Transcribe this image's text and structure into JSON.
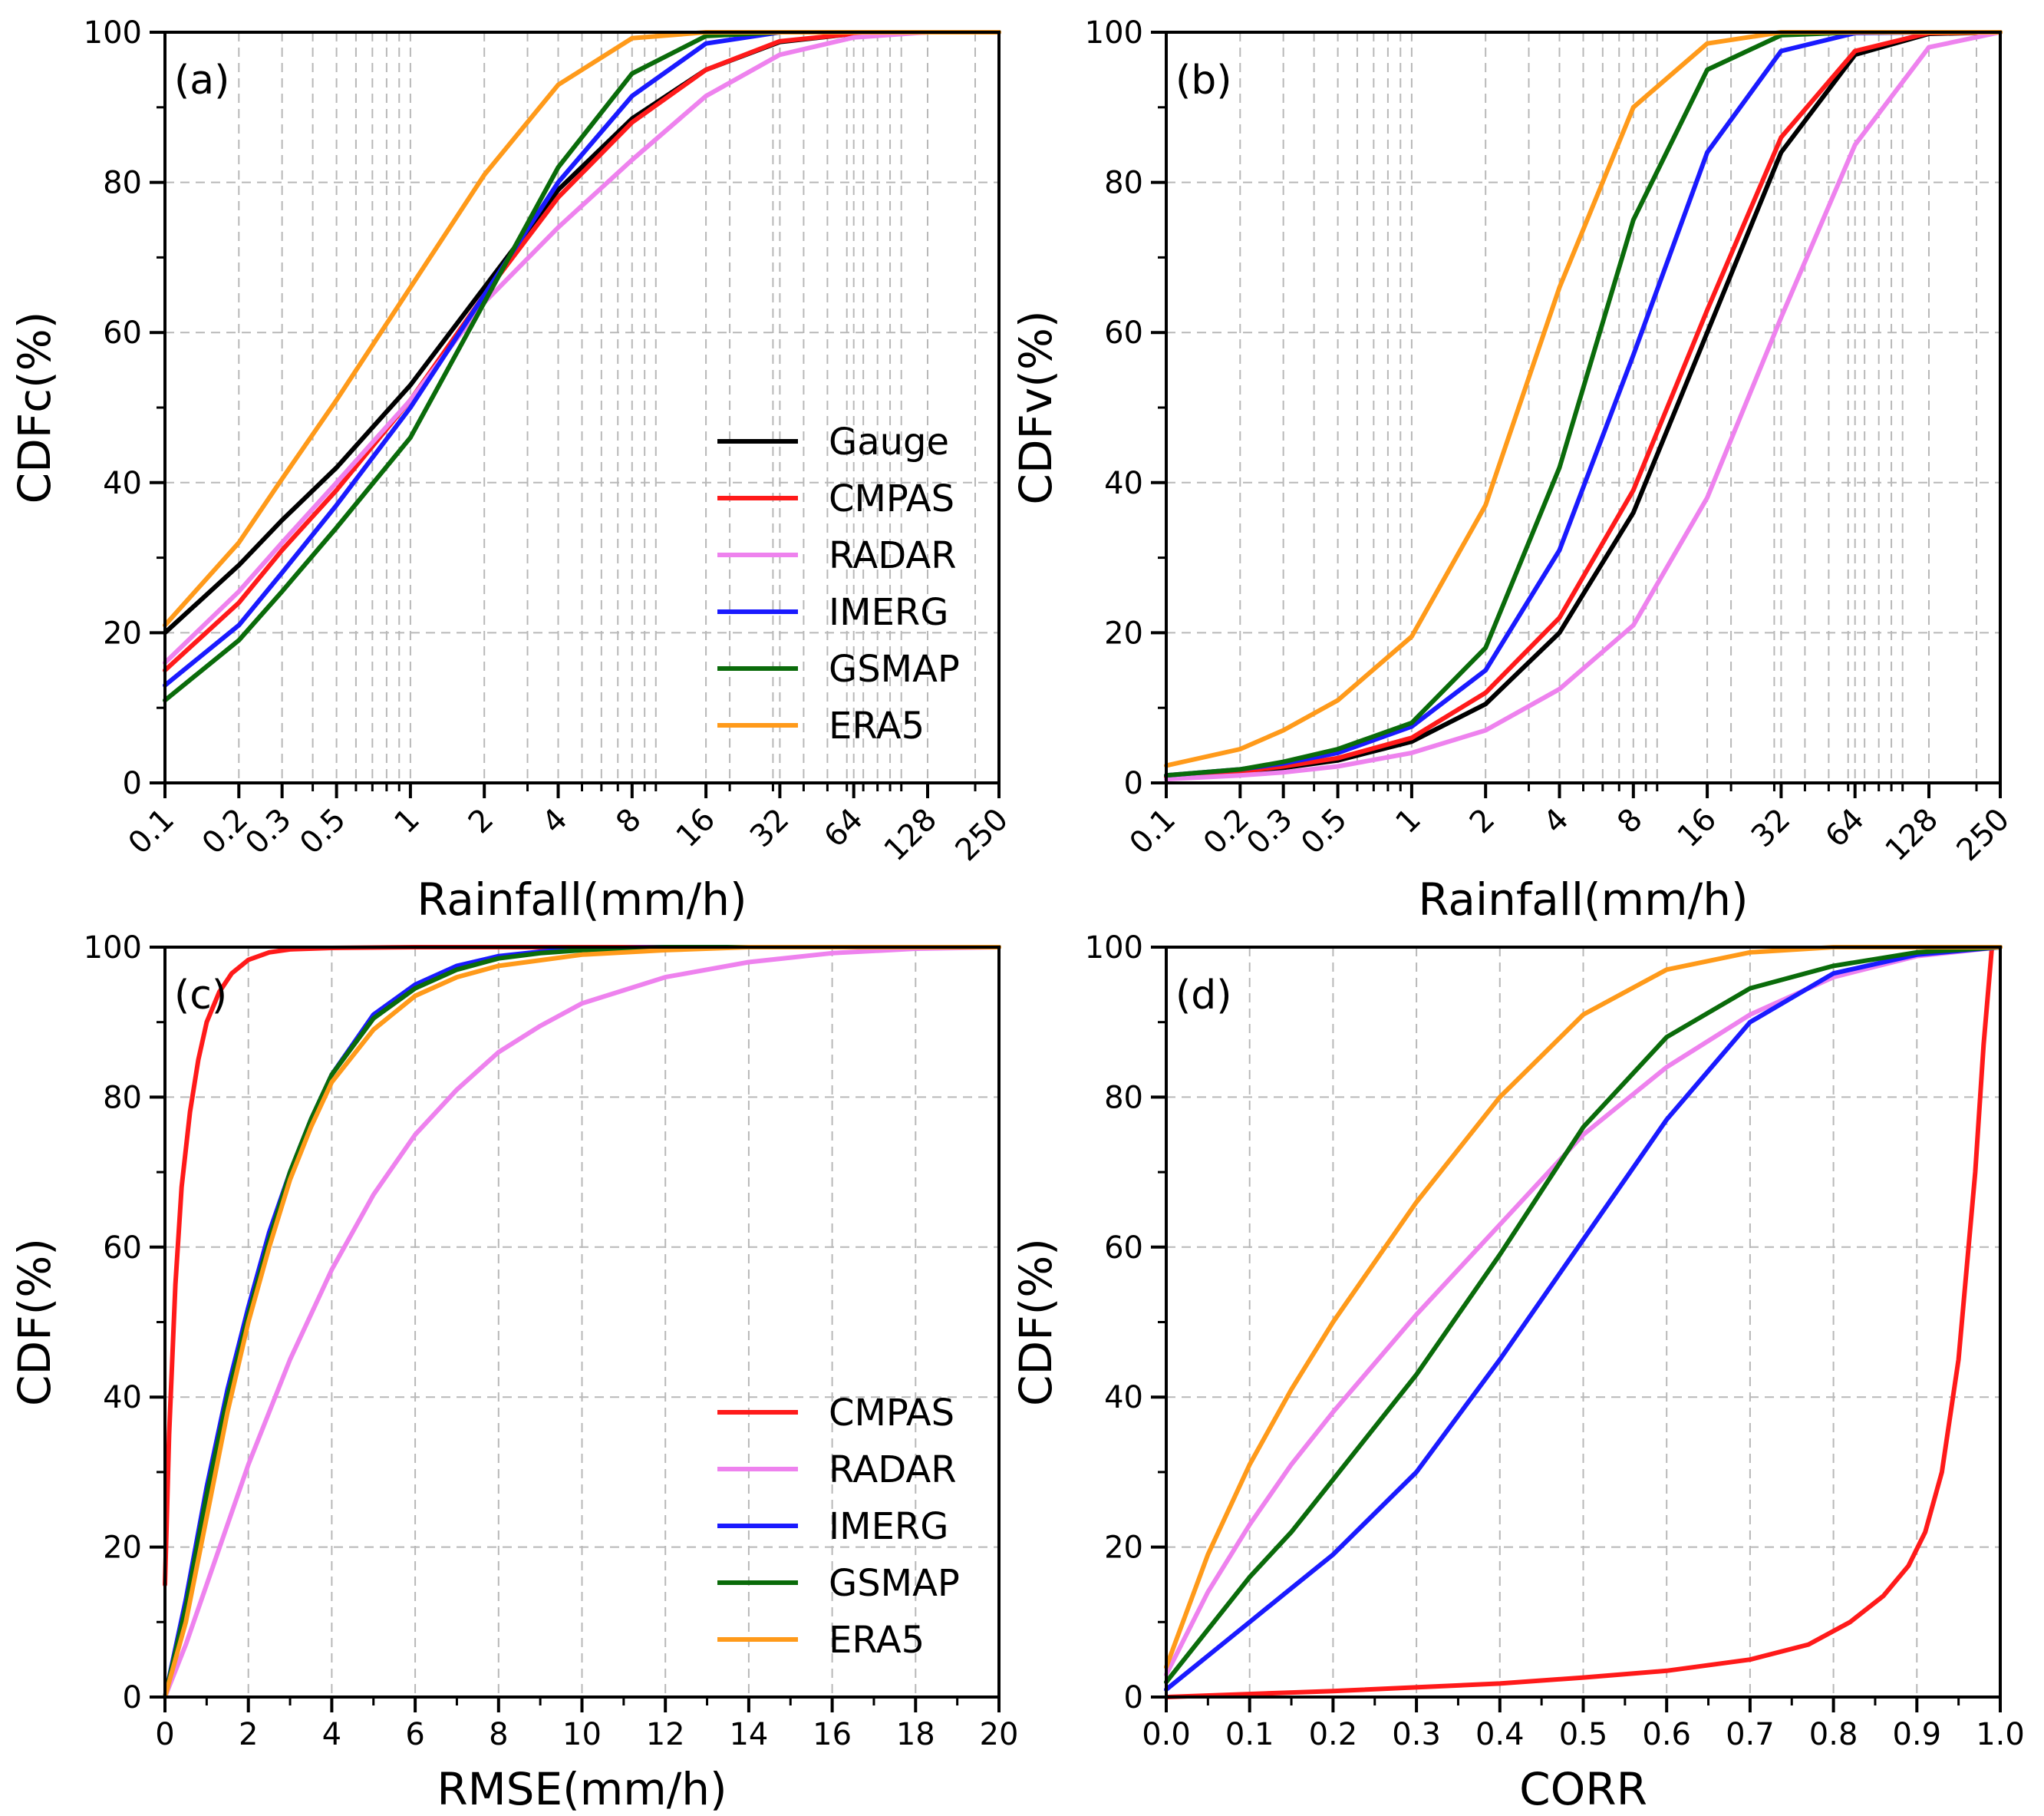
{
  "colors": {
    "Gauge": "#000000",
    "CMPAS": "#ff1a1a",
    "RADAR": "#ee82ee",
    "IMERG": "#1a1aff",
    "GSMAP": "#0a6b0a",
    "ERA5": "#ff9a1a"
  },
  "chart_data": [
    {
      "id": "a",
      "type": "line",
      "panel_label": "(a)",
      "xscale": "log",
      "xlabel": "Rainfall(mm/h)",
      "ylabel": "CDFc(%)",
      "xlim": [
        0.1,
        250
      ],
      "ylim": [
        0,
        100
      ],
      "x_ticks": [
        0.1,
        0.2,
        0.3,
        0.5,
        1,
        2,
        4,
        8,
        16,
        32,
        64,
        128,
        250
      ],
      "x_tick_labels": [
        "0.1",
        "0.2",
        "0.3",
        "0.5",
        "1",
        "2",
        "4",
        "8",
        "16",
        "32",
        "64",
        "128",
        "250"
      ],
      "y_ticks": [
        0,
        20,
        40,
        60,
        80,
        100
      ],
      "y_tick_labels": [
        "0",
        "20",
        "40",
        "60",
        "80",
        "100"
      ],
      "grid": true,
      "legend": "center-right",
      "series": [
        {
          "name": "Gauge",
          "x": [
            0.1,
            0.2,
            0.3,
            0.5,
            1,
            2,
            4,
            8,
            16,
            32,
            64,
            128,
            250
          ],
          "y": [
            20,
            29,
            35,
            42,
            53,
            66,
            79,
            88.5,
            95,
            98.7,
            99.8,
            100,
            100
          ]
        },
        {
          "name": "CMPAS",
          "x": [
            0.1,
            0.2,
            0.3,
            0.5,
            1,
            2,
            4,
            8,
            16,
            32,
            64,
            128,
            250
          ],
          "y": [
            15,
            24,
            31,
            39,
            51,
            65,
            78,
            88,
            95,
            98.8,
            99.8,
            100,
            100
          ]
        },
        {
          "name": "RADAR",
          "x": [
            0.1,
            0.2,
            0.3,
            0.5,
            1,
            2,
            4,
            8,
            16,
            32,
            64,
            128,
            250
          ],
          "y": [
            16,
            25.5,
            32,
            40,
            51,
            64,
            74,
            83,
            91.5,
            97,
            99.3,
            100,
            100
          ]
        },
        {
          "name": "IMERG",
          "x": [
            0.1,
            0.2,
            0.3,
            0.5,
            1,
            2,
            4,
            8,
            16,
            32,
            64,
            128,
            250
          ],
          "y": [
            13,
            21,
            28,
            37,
            50,
            65,
            80,
            91.5,
            98.5,
            100,
            100,
            100,
            100
          ]
        },
        {
          "name": "GSMAP",
          "x": [
            0.1,
            0.2,
            0.3,
            0.5,
            1,
            2,
            4,
            8,
            16,
            32,
            64,
            128,
            250
          ],
          "y": [
            11,
            19,
            25.5,
            34,
            46,
            64,
            82,
            94.5,
            99.5,
            100,
            100,
            100,
            100
          ]
        },
        {
          "name": "ERA5",
          "x": [
            0.1,
            0.2,
            0.3,
            0.5,
            1,
            2,
            4,
            8,
            16,
            32,
            64,
            128,
            250
          ],
          "y": [
            21,
            32,
            40.5,
            51,
            66,
            81,
            93,
            99.2,
            100,
            100,
            100,
            100,
            100
          ]
        }
      ]
    },
    {
      "id": "b",
      "type": "line",
      "panel_label": "(b)",
      "xscale": "log",
      "xlabel": "Rainfall(mm/h)",
      "ylabel": "CDFv(%)",
      "xlim": [
        0.1,
        250
      ],
      "ylim": [
        0,
        100
      ],
      "x_ticks": [
        0.1,
        0.2,
        0.3,
        0.5,
        1,
        2,
        4,
        8,
        16,
        32,
        64,
        128,
        250
      ],
      "x_tick_labels": [
        "0.1",
        "0.2",
        "0.3",
        "0.5",
        "1",
        "2",
        "4",
        "8",
        "16",
        "32",
        "64",
        "128",
        "250"
      ],
      "y_ticks": [
        0,
        20,
        40,
        60,
        80,
        100
      ],
      "y_tick_labels": [
        "0",
        "20",
        "40",
        "60",
        "80",
        "100"
      ],
      "grid": true,
      "legend": "none",
      "series": [
        {
          "name": "Gauge",
          "x": [
            0.1,
            0.2,
            0.3,
            0.5,
            1,
            2,
            4,
            8,
            16,
            32,
            64,
            128,
            250
          ],
          "y": [
            0.8,
            1.4,
            2,
            3,
            5.5,
            10.5,
            20,
            36,
            60,
            84,
            97,
            99.8,
            100
          ]
        },
        {
          "name": "CMPAS",
          "x": [
            0.1,
            0.2,
            0.3,
            0.5,
            1,
            2,
            4,
            8,
            16,
            32,
            64,
            128,
            250
          ],
          "y": [
            0.8,
            1.5,
            2.2,
            3.3,
            6,
            12,
            22,
            39,
            63,
            86,
            97.5,
            99.9,
            100
          ]
        },
        {
          "name": "RADAR",
          "x": [
            0.1,
            0.2,
            0.3,
            0.5,
            1,
            2,
            4,
            8,
            16,
            32,
            64,
            128,
            250
          ],
          "y": [
            0.5,
            1,
            1.4,
            2.2,
            4,
            7,
            12.5,
            21,
            38,
            62,
            85,
            98,
            100
          ]
        },
        {
          "name": "IMERG",
          "x": [
            0.1,
            0.2,
            0.3,
            0.5,
            1,
            2,
            4,
            8,
            16,
            32,
            64,
            128,
            250
          ],
          "y": [
            1,
            1.8,
            2.6,
            4,
            7.5,
            15,
            31,
            57,
            84,
            97.5,
            99.9,
            100,
            100
          ]
        },
        {
          "name": "GSMAP",
          "x": [
            0.1,
            0.2,
            0.3,
            0.5,
            1,
            2,
            4,
            8,
            16,
            32,
            64,
            128,
            250
          ],
          "y": [
            1,
            1.8,
            2.8,
            4.5,
            8,
            18,
            42,
            75,
            95,
            99.6,
            100,
            100,
            100
          ]
        },
        {
          "name": "ERA5",
          "x": [
            0.1,
            0.2,
            0.3,
            0.5,
            1,
            2,
            4,
            8,
            16,
            32,
            64,
            128,
            250
          ],
          "y": [
            2.3,
            4.5,
            7,
            11,
            19.5,
            37,
            66,
            90,
            98.5,
            100,
            100,
            100,
            100
          ]
        }
      ]
    },
    {
      "id": "c",
      "type": "line",
      "panel_label": "(c)",
      "xscale": "linear",
      "xlabel": "RMSE(mm/h)",
      "ylabel": "CDF(%)",
      "xlim": [
        0,
        20
      ],
      "ylim": [
        0,
        100
      ],
      "x_ticks": [
        0,
        2,
        4,
        6,
        8,
        10,
        12,
        14,
        16,
        18,
        20
      ],
      "x_tick_labels": [
        "0",
        "2",
        "4",
        "6",
        "8",
        "10",
        "12",
        "14",
        "16",
        "18",
        "20"
      ],
      "y_ticks": [
        0,
        20,
        40,
        60,
        80,
        100
      ],
      "y_tick_labels": [
        "0",
        "20",
        "40",
        "60",
        "80",
        "100"
      ],
      "grid": true,
      "legend": "bottom-right",
      "series": [
        {
          "name": "CMPAS",
          "x": [
            0,
            0.1,
            0.25,
            0.4,
            0.6,
            0.8,
            1.0,
            1.3,
            1.6,
            2.0,
            2.5,
            3.0,
            4.0,
            6.0,
            20.0
          ],
          "y": [
            15,
            35,
            55,
            68,
            78,
            85,
            90,
            94,
            96.5,
            98.3,
            99.3,
            99.7,
            99.9,
            100,
            100
          ]
        },
        {
          "name": "RADAR",
          "x": [
            0,
            0.5,
            1,
            1.5,
            2,
            3,
            4,
            5,
            6,
            7,
            8,
            9,
            10,
            12,
            14,
            16,
            18,
            20
          ],
          "y": [
            0,
            7,
            15,
            23,
            31,
            45,
            57,
            67,
            75,
            81,
            86,
            89.5,
            92.5,
            96,
            98,
            99.2,
            99.8,
            100
          ]
        },
        {
          "name": "IMERG",
          "x": [
            0,
            0.5,
            1,
            1.5,
            2,
            2.5,
            3,
            3.5,
            4,
            5,
            6,
            7,
            8,
            9,
            10,
            12,
            20
          ],
          "y": [
            0,
            13,
            28,
            41,
            52,
            62,
            70,
            77,
            83,
            91,
            95,
            97.5,
            98.8,
            99.4,
            99.8,
            100,
            100
          ]
        },
        {
          "name": "GSMAP",
          "x": [
            0,
            0.5,
            1,
            1.5,
            2,
            2.5,
            3,
            3.5,
            4,
            5,
            6,
            7,
            8,
            9,
            10,
            12,
            20
          ],
          "y": [
            0,
            12,
            27,
            40,
            51,
            61,
            70,
            77,
            83,
            90.5,
            94.5,
            97,
            98.5,
            99.2,
            99.6,
            100,
            100
          ]
        },
        {
          "name": "ERA5",
          "x": [
            0,
            0.5,
            1,
            1.5,
            2,
            2.5,
            3,
            3.5,
            4,
            5,
            6,
            7,
            8,
            10,
            12,
            14,
            20
          ],
          "y": [
            0,
            10,
            24,
            38,
            50,
            60,
            69,
            76,
            82,
            89,
            93.5,
            96,
            97.5,
            99,
            99.6,
            100,
            100
          ]
        }
      ]
    },
    {
      "id": "d",
      "type": "line",
      "panel_label": "(d)",
      "xscale": "linear",
      "xlabel": "CORR",
      "ylabel": "CDF(%)",
      "xlim": [
        0,
        1
      ],
      "ylim": [
        0,
        100
      ],
      "x_ticks": [
        0,
        0.1,
        0.2,
        0.3,
        0.4,
        0.5,
        0.6,
        0.7,
        0.8,
        0.9,
        1.0
      ],
      "x_tick_labels": [
        "0.0",
        "0.1",
        "0.2",
        "0.3",
        "0.4",
        "0.5",
        "0.6",
        "0.7",
        "0.8",
        "0.9",
        "1.0"
      ],
      "y_ticks": [
        0,
        20,
        40,
        60,
        80,
        100
      ],
      "y_tick_labels": [
        "0",
        "20",
        "40",
        "60",
        "80",
        "100"
      ],
      "grid": true,
      "legend": "none",
      "series": [
        {
          "name": "CMPAS",
          "x": [
            0,
            0.2,
            0.4,
            0.5,
            0.6,
            0.7,
            0.77,
            0.82,
            0.86,
            0.89,
            0.91,
            0.93,
            0.95,
            0.97,
            0.98,
            0.99
          ],
          "y": [
            0,
            0.8,
            1.8,
            2.6,
            3.5,
            5,
            7,
            10,
            13.5,
            17.5,
            22,
            30,
            45,
            70,
            87,
            100
          ]
        },
        {
          "name": "RADAR",
          "x": [
            0,
            0.05,
            0.1,
            0.15,
            0.2,
            0.3,
            0.4,
            0.5,
            0.6,
            0.7,
            0.8,
            0.9,
            1.0
          ],
          "y": [
            3,
            14,
            23,
            31,
            38,
            51,
            63,
            75,
            84,
            91,
            96,
            98.8,
            100
          ]
        },
        {
          "name": "IMERG",
          "x": [
            0,
            0.05,
            0.1,
            0.15,
            0.2,
            0.3,
            0.4,
            0.5,
            0.6,
            0.7,
            0.8,
            0.9,
            1.0
          ],
          "y": [
            1,
            5.5,
            10,
            14.5,
            19,
            30,
            45,
            61,
            77,
            90,
            96.5,
            99,
            100
          ]
        },
        {
          "name": "GSMAP",
          "x": [
            0,
            0.05,
            0.1,
            0.15,
            0.2,
            0.3,
            0.4,
            0.5,
            0.6,
            0.7,
            0.8,
            0.9,
            1.0
          ],
          "y": [
            2,
            9,
            16,
            22,
            29,
            43,
            59,
            76,
            88,
            94.5,
            97.5,
            99.3,
            100
          ]
        },
        {
          "name": "ERA5",
          "x": [
            0,
            0.05,
            0.1,
            0.15,
            0.2,
            0.3,
            0.4,
            0.5,
            0.6,
            0.7,
            0.8,
            0.9,
            1.0
          ],
          "y": [
            4,
            19,
            31,
            41,
            50,
            66,
            80,
            91,
            97,
            99.3,
            100,
            100,
            100
          ]
        }
      ]
    }
  ]
}
